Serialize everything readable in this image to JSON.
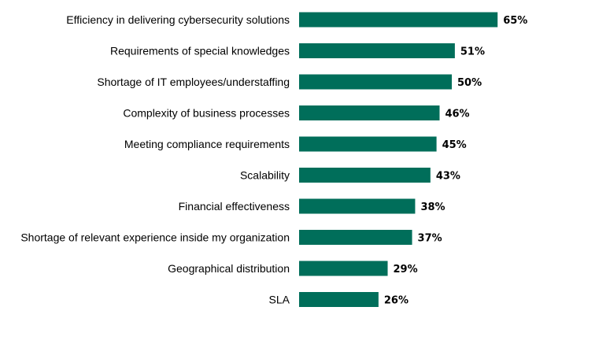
{
  "chart_data": {
    "type": "bar",
    "orientation": "horizontal",
    "title": "",
    "xlabel": "",
    "ylabel": "",
    "categories": [
      "Efficiency in delivering cybersecurity solutions",
      "Requirements of special knowledges",
      "Shortage of IT employees/understaffing",
      "Complexity of business processes",
      "Meeting compliance requirements",
      "Scalability",
      "Financial effectiveness",
      "Shortage of relevant experience inside my organization",
      "Geographical distribution",
      "SLA"
    ],
    "values": [
      65,
      51,
      50,
      46,
      45,
      43,
      38,
      37,
      29,
      26
    ],
    "value_labels": [
      "65%",
      "51%",
      "50%",
      "46%",
      "45%",
      "43%",
      "38%",
      "37%",
      "29%",
      "26%"
    ],
    "xlim": [
      0,
      100
    ],
    "grid": false,
    "legend": "none",
    "bar_color": "#006e5a"
  }
}
